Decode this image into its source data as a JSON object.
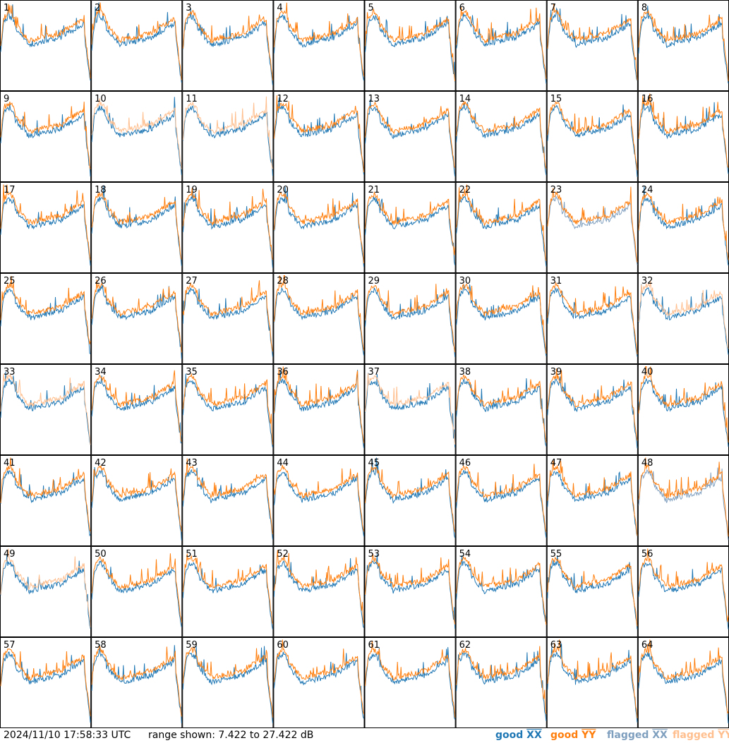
{
  "footer": {
    "timestamp": "2024/11/10 17:58:33 UTC",
    "range_text": "range shown: 7.422 to 27.422 dB"
  },
  "legend": [
    {
      "name": "good_xx",
      "label_prefix": "good ",
      "label_mark": "XX",
      "color": "#1f77b4"
    },
    {
      "name": "good_yy",
      "label_prefix": "good ",
      "label_mark": "YY",
      "color": "#ff7f0e"
    },
    {
      "name": "flagged_xx",
      "label_prefix": "flagged ",
      "label_mark": "XX",
      "color": "#7f9fbf"
    },
    {
      "name": "flagged_yy",
      "label_prefix": "flagged ",
      "label_mark": "YY",
      "color": "#ffbf8f"
    }
  ],
  "chart_data": {
    "type": "line",
    "grid": "8x8 small multiples",
    "ylim": [
      7.422,
      27.422
    ],
    "units": "dB",
    "panel_labels": [
      "1",
      "2",
      "3",
      "4",
      "5",
      "6",
      "7",
      "8",
      "9",
      "10",
      "11",
      "12",
      "13",
      "14",
      "15",
      "16",
      "17",
      "18",
      "19",
      "20",
      "21",
      "22",
      "23",
      "24",
      "25",
      "26",
      "27",
      "28",
      "29",
      "30",
      "31",
      "32",
      "33",
      "34",
      "35",
      "36",
      "37",
      "38",
      "39",
      "40",
      "41",
      "42",
      "43",
      "44",
      "45",
      "46",
      "47",
      "48",
      "49",
      "50",
      "51",
      "52",
      "53",
      "54",
      "55",
      "56",
      "57",
      "58",
      "59",
      "60",
      "61",
      "62",
      "63",
      "64"
    ],
    "flagged_xx_panels": [
      "23",
      "48"
    ],
    "flagged_yy_panels": [
      "10",
      "11",
      "32",
      "33",
      "37",
      "49"
    ]
  }
}
